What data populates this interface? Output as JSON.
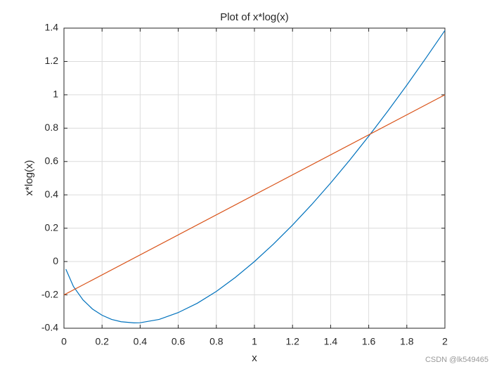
{
  "chart_data": {
    "type": "line",
    "title": "Plot of x*log(x)",
    "x_label": "x",
    "y_label": "x*log(x)",
    "series": [
      {
        "color": "#0072bd",
        "x": [
          0.01,
          0.05,
          0.1,
          0.15,
          0.2,
          0.25,
          0.3,
          0.368,
          0.4,
          0.5,
          0.6,
          0.7,
          0.8,
          0.9,
          1.0,
          1.1,
          1.2,
          1.3,
          1.4,
          1.5,
          1.6,
          1.7,
          1.8,
          1.9,
          2.0
        ],
        "values": [
          -0.046,
          -0.15,
          -0.23,
          -0.285,
          -0.322,
          -0.347,
          -0.361,
          -0.368,
          -0.367,
          -0.347,
          -0.306,
          -0.25,
          -0.179,
          -0.095,
          0,
          0.105,
          0.219,
          0.341,
          0.471,
          0.608,
          0.752,
          0.902,
          1.058,
          1.22,
          1.386
        ]
      },
      {
        "color": "#d95319",
        "x": [
          0,
          2
        ],
        "values": [
          -0.2,
          1.0
        ]
      }
    ],
    "xlim": [
      0,
      2
    ],
    "xticks": [
      0,
      0.2,
      0.4,
      0.6,
      0.8,
      1,
      1.2,
      1.4,
      1.6,
      1.8,
      2
    ],
    "ylim": [
      -0.4,
      1.4
    ],
    "yticks": [
      -0.4,
      -0.2,
      0,
      0.2,
      0.4,
      0.6,
      0.8,
      1,
      1.2,
      1.4
    ],
    "grid": true
  },
  "watermark": "CSDN @lk549465"
}
